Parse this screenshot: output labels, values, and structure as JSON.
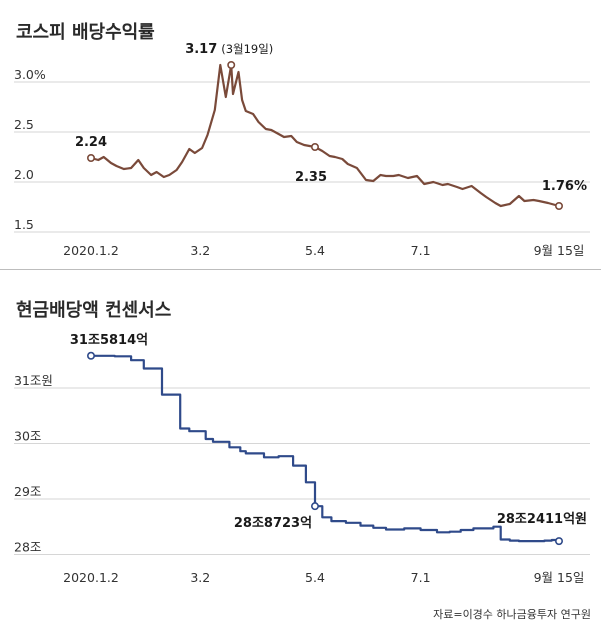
{
  "chart_data": [
    {
      "type": "line",
      "title": "코스피 배당수익률",
      "ylim": [
        1.5,
        3.2
      ],
      "y_ticks": [
        "1.5",
        "2.0",
        "2.5",
        "3.0%"
      ],
      "y_tick_values": [
        1.5,
        2.0,
        2.5,
        3.0
      ],
      "x_ticks": [
        "2020.1.2",
        "3.2",
        "5.4",
        "7.1",
        "9월 15일"
      ],
      "x_tick_values": [
        "2020-01-02",
        "2020-03-02",
        "2020-05-04",
        "2020-07-01",
        "2020-09-15"
      ],
      "grid": true,
      "color": "#7a4a3a",
      "series": [
        {
          "x": [
            "2020-01-02",
            "2020-01-06",
            "2020-01-09",
            "2020-01-13",
            "2020-01-16",
            "2020-01-20",
            "2020-01-24",
            "2020-01-28",
            "2020-01-31",
            "2020-02-04",
            "2020-02-07",
            "2020-02-11",
            "2020-02-14",
            "2020-02-18",
            "2020-02-21",
            "2020-02-25",
            "2020-02-28",
            "2020-03-03",
            "2020-03-06",
            "2020-03-10",
            "2020-03-13",
            "2020-03-16",
            "2020-03-19",
            "2020-03-20",
            "2020-03-23",
            "2020-03-25",
            "2020-03-27",
            "2020-03-31",
            "2020-04-03",
            "2020-04-07",
            "2020-04-10",
            "2020-04-14",
            "2020-04-17",
            "2020-04-21",
            "2020-04-24",
            "2020-04-28",
            "2020-05-04",
            "2020-05-08",
            "2020-05-12",
            "2020-05-15",
            "2020-05-19",
            "2020-05-22",
            "2020-05-27",
            "2020-06-01",
            "2020-06-05",
            "2020-06-09",
            "2020-06-12",
            "2020-06-16",
            "2020-06-19",
            "2020-06-24",
            "2020-06-29",
            "2020-07-03",
            "2020-07-08",
            "2020-07-13",
            "2020-07-16",
            "2020-07-21",
            "2020-07-24",
            "2020-07-29",
            "2020-08-03",
            "2020-08-06",
            "2020-08-11",
            "2020-08-14",
            "2020-08-19",
            "2020-08-24",
            "2020-08-27",
            "2020-09-01",
            "2020-09-04",
            "2020-09-09",
            "2020-09-15"
          ],
          "values": [
            2.24,
            2.22,
            2.25,
            2.19,
            2.16,
            2.13,
            2.14,
            2.22,
            2.14,
            2.07,
            2.1,
            2.05,
            2.07,
            2.12,
            2.2,
            2.33,
            2.29,
            2.34,
            2.47,
            2.72,
            3.17,
            2.85,
            3.17,
            2.88,
            3.1,
            2.82,
            2.71,
            2.68,
            2.6,
            2.53,
            2.52,
            2.48,
            2.45,
            2.46,
            2.4,
            2.37,
            2.35,
            2.31,
            2.26,
            2.25,
            2.23,
            2.18,
            2.14,
            2.02,
            2.01,
            2.07,
            2.06,
            2.06,
            2.07,
            2.04,
            2.06,
            1.98,
            2.0,
            1.97,
            1.98,
            1.95,
            1.93,
            1.96,
            1.89,
            1.85,
            1.79,
            1.76,
            1.78,
            1.86,
            1.81,
            1.82,
            1.81,
            1.79,
            1.76
          ]
        }
      ],
      "annotations": {
        "start": "2.24",
        "peak": "3.17",
        "peak_date": "(3월19일)",
        "mid": "2.35",
        "end": "1.76%"
      }
    },
    {
      "type": "line",
      "title": "현금배당액 컨센서스",
      "ylim": [
        27.9,
        31.9
      ],
      "y_ticks": [
        "28조",
        "29조",
        "30조",
        "31조원"
      ],
      "y_tick_values": [
        28,
        29,
        30,
        31
      ],
      "x_ticks": [
        "2020.1.2",
        "3.2",
        "5.4",
        "7.1",
        "9월 15일"
      ],
      "x_tick_values": [
        "2020-01-02",
        "2020-03-02",
        "2020-05-04",
        "2020-07-01",
        "2020-09-15"
      ],
      "grid": true,
      "color": "#2f4a8a",
      "series": [
        {
          "x": [
            "2020-01-02",
            "2020-01-15",
            "2020-01-24",
            "2020-01-31",
            "2020-02-10",
            "2020-02-20",
            "2020-02-25",
            "2020-03-05",
            "2020-03-09",
            "2020-03-18",
            "2020-03-24",
            "2020-03-27",
            "2020-04-06",
            "2020-04-10",
            "2020-04-14",
            "2020-04-22",
            "2020-04-29",
            "2020-05-04",
            "2020-05-08",
            "2020-05-13",
            "2020-05-21",
            "2020-05-29",
            "2020-06-05",
            "2020-06-12",
            "2020-06-22",
            "2020-07-01",
            "2020-07-10",
            "2020-07-17",
            "2020-07-23",
            "2020-07-30",
            "2020-08-10",
            "2020-08-14",
            "2020-08-19",
            "2020-08-24",
            "2020-08-31",
            "2020-09-07",
            "2020-09-11",
            "2020-09-15"
          ],
          "values": [
            31.58,
            31.57,
            31.5,
            31.35,
            30.88,
            30.27,
            30.22,
            30.08,
            30.03,
            29.93,
            29.86,
            29.82,
            29.75,
            29.75,
            29.77,
            29.6,
            29.3,
            28.87,
            28.67,
            28.6,
            28.57,
            28.52,
            28.48,
            28.45,
            28.47,
            28.44,
            28.4,
            28.41,
            28.44,
            28.47,
            28.5,
            28.27,
            28.25,
            28.24,
            28.24,
            28.25,
            28.26,
            28.24
          ]
        }
      ],
      "annotations": {
        "start": "31조5814억",
        "mid": "28조8723억",
        "end": "28조2411억원"
      }
    }
  ],
  "source": "자료=이경수 하나금융투자 연구원"
}
